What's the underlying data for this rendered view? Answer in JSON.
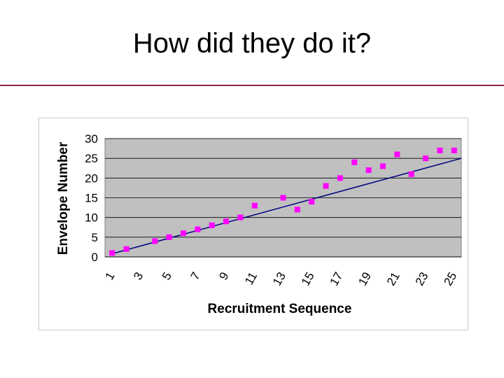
{
  "slide": {
    "title": "How did they do it?",
    "rule_color": "#8b2a45"
  },
  "chart_data": {
    "type": "scatter",
    "xlabel": "Recruitment Sequence",
    "ylabel": "Envelope Number",
    "x_categories": [
      "1",
      "2",
      "3",
      "4",
      "5",
      "6",
      "7",
      "8",
      "9",
      "10",
      "11",
      "12",
      "13",
      "14",
      "15",
      "16",
      "17",
      "18",
      "19",
      "20",
      "21",
      "22",
      "23",
      "24",
      "25"
    ],
    "x_tick_labels": [
      "1",
      "3",
      "5",
      "7",
      "9",
      "11",
      "13",
      "15",
      "17",
      "19",
      "21",
      "23",
      "25"
    ],
    "ylim": [
      0,
      30
    ],
    "y_ticks": [
      0,
      5,
      10,
      15,
      20,
      25,
      30
    ],
    "grid": true,
    "plot_background": "#c0c0c0",
    "series": [
      {
        "kind": "points",
        "color": "#ff00ff",
        "x": [
          1,
          2,
          4,
          5,
          6,
          7,
          8,
          9,
          10,
          11,
          13,
          14,
          15,
          16,
          17,
          18,
          19,
          20,
          21,
          22,
          23,
          24,
          25
        ],
        "y": [
          1,
          2,
          4,
          5,
          6,
          7,
          8,
          9,
          10,
          13,
          15,
          12,
          14,
          18,
          20,
          24,
          22,
          23,
          26,
          21,
          25,
          27,
          27
        ]
      },
      {
        "kind": "trendline",
        "color": "#000080",
        "x": [
          1,
          25.5
        ],
        "y": [
          0.8,
          25
        ]
      }
    ]
  }
}
